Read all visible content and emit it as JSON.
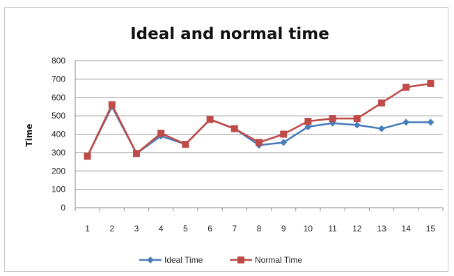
{
  "chart_data": {
    "type": "line",
    "title": "Ideal and normal time",
    "xlabel": "",
    "ylabel": "Time",
    "x": [
      1,
      2,
      3,
      4,
      5,
      6,
      7,
      8,
      9,
      10,
      11,
      12,
      13,
      14,
      15
    ],
    "ylim": [
      0,
      800
    ],
    "yticks": [
      0,
      100,
      200,
      300,
      400,
      500,
      600,
      700,
      800
    ],
    "grid": true,
    "legend": "bottom",
    "series": [
      {
        "name": "Ideal Time",
        "color": "#4a7ebb",
        "marker": "diamond",
        "values": [
          280,
          550,
          295,
          390,
          345,
          480,
          430,
          340,
          355,
          440,
          460,
          450,
          430,
          465,
          465
        ]
      },
      {
        "name": "Normal Time",
        "color": "#be4b48",
        "marker": "square",
        "values": [
          280,
          560,
          295,
          405,
          345,
          480,
          430,
          355,
          400,
          470,
          485,
          485,
          570,
          655,
          675
        ]
      }
    ]
  }
}
